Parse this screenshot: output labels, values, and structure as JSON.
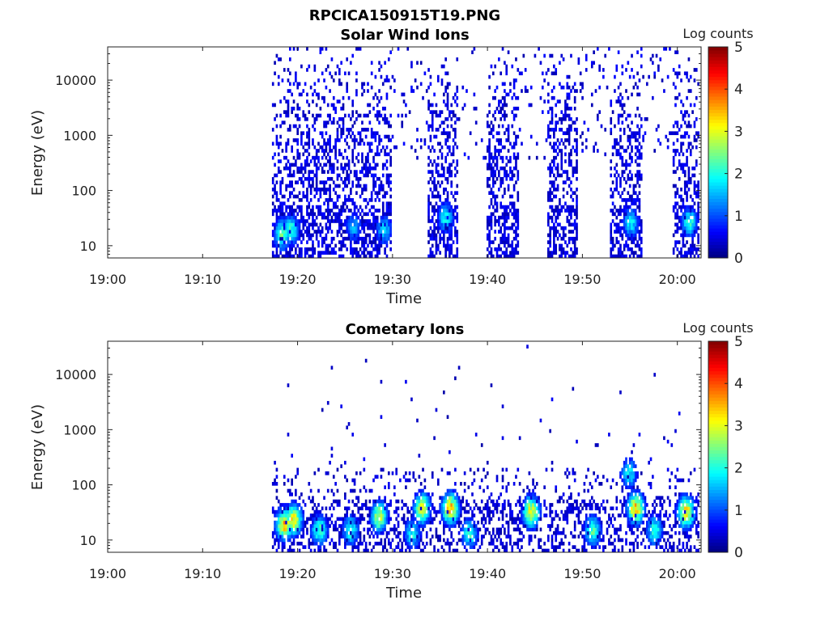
{
  "figure_title": "RPCICA150915T19.PNG",
  "chart_data": [
    {
      "type": "heatmap",
      "title": "Solar Wind Ions",
      "xlabel": "Time",
      "ylabel": "Energy (eV)",
      "x_ticks": [
        "19:00",
        "19:10",
        "19:20",
        "19:30",
        "19:40",
        "19:50",
        "20:00"
      ],
      "x_range": [
        "19:00",
        "20:02.5"
      ],
      "y_scale": "log",
      "y_ticks": [
        10,
        100,
        1000,
        10000
      ],
      "y_tick_labels": [
        "10",
        "100",
        "1000",
        "10000"
      ],
      "y_range": [
        6,
        40000
      ],
      "colorbar": {
        "title": "Log counts",
        "ticks": [
          "0",
          "1",
          "2",
          "3",
          "4",
          "5"
        ],
        "range": [
          0,
          5
        ],
        "colormap": "jet"
      },
      "data_start": "19:17.3",
      "active_intervals": [
        [
          "19:17.3",
          "19:29.8"
        ],
        [
          "19:33.5",
          "19:36.8"
        ],
        [
          "19:39.8",
          "19:43.2"
        ],
        [
          "19:46.3",
          "19:49.5"
        ],
        [
          "19:52.8",
          "19:56.2"
        ],
        [
          "19:59.5",
          "20:02.2"
        ]
      ],
      "sparse_intervals": [
        [
          "19:29.8",
          "19:33.5"
        ],
        [
          "19:36.8",
          "19:39.8"
        ],
        [
          "19:43.2",
          "19:46.3"
        ],
        [
          "19:49.5",
          "19:52.8"
        ],
        [
          "19:56.2",
          "19:59.5"
        ]
      ],
      "peaks": [
        {
          "time": "19:18.3",
          "energy_eV": 15,
          "log_counts": 2.5
        },
        {
          "time": "19:19.2",
          "energy_eV": 18,
          "log_counts": 2.3
        },
        {
          "time": "19:25.8",
          "energy_eV": 20,
          "log_counts": 1.6
        },
        {
          "time": "19:29.0",
          "energy_eV": 18,
          "log_counts": 1.8
        },
        {
          "time": "19:35.5",
          "energy_eV": 30,
          "log_counts": 2.0
        },
        {
          "time": "19:55.0",
          "energy_eV": 25,
          "log_counts": 2.0
        },
        {
          "time": "20:01.2",
          "energy_eV": 25,
          "log_counts": 2.2
        }
      ]
    },
    {
      "type": "heatmap",
      "title": "Cometary Ions",
      "xlabel": "Time",
      "ylabel": "Energy (eV)",
      "x_ticks": [
        "19:00",
        "19:10",
        "19:20",
        "19:30",
        "19:40",
        "19:50",
        "20:00"
      ],
      "x_range": [
        "19:00",
        "20:02.5"
      ],
      "y_scale": "log",
      "y_ticks": [
        10,
        100,
        1000,
        10000
      ],
      "y_tick_labels": [
        "10",
        "100",
        "1000",
        "10000"
      ],
      "y_range": [
        6,
        40000
      ],
      "colorbar": {
        "title": "Log counts",
        "ticks": [
          "0",
          "1",
          "2",
          "3",
          "4",
          "5"
        ],
        "range": [
          0,
          5
        ],
        "colormap": "jet"
      },
      "data_start": "19:17.3",
      "peaks": [
        {
          "time": "19:18.5",
          "energy_eV": 18,
          "log_counts": 3.6
        },
        {
          "time": "19:19.5",
          "energy_eV": 22,
          "log_counts": 3.3
        },
        {
          "time": "19:22.2",
          "energy_eV": 14,
          "log_counts": 2.4
        },
        {
          "time": "19:25.5",
          "energy_eV": 14,
          "log_counts": 2.2
        },
        {
          "time": "19:28.5",
          "energy_eV": 25,
          "log_counts": 3.0
        },
        {
          "time": "19:32.0",
          "energy_eV": 12,
          "log_counts": 2.0
        },
        {
          "time": "19:33.0",
          "energy_eV": 35,
          "log_counts": 3.2
        },
        {
          "time": "19:36.0",
          "energy_eV": 35,
          "log_counts": 3.6
        },
        {
          "time": "19:38.0",
          "energy_eV": 12,
          "log_counts": 2.2
        },
        {
          "time": "19:44.5",
          "energy_eV": 30,
          "log_counts": 3.4
        },
        {
          "time": "19:51.0",
          "energy_eV": 14,
          "log_counts": 2.4
        },
        {
          "time": "19:54.8",
          "energy_eV": 150,
          "log_counts": 2.0
        },
        {
          "time": "19:55.5",
          "energy_eV": 35,
          "log_counts": 3.6
        },
        {
          "time": "19:57.5",
          "energy_eV": 14,
          "log_counts": 2.2
        },
        {
          "time": "20:00.8",
          "energy_eV": 30,
          "log_counts": 3.6
        }
      ]
    }
  ]
}
